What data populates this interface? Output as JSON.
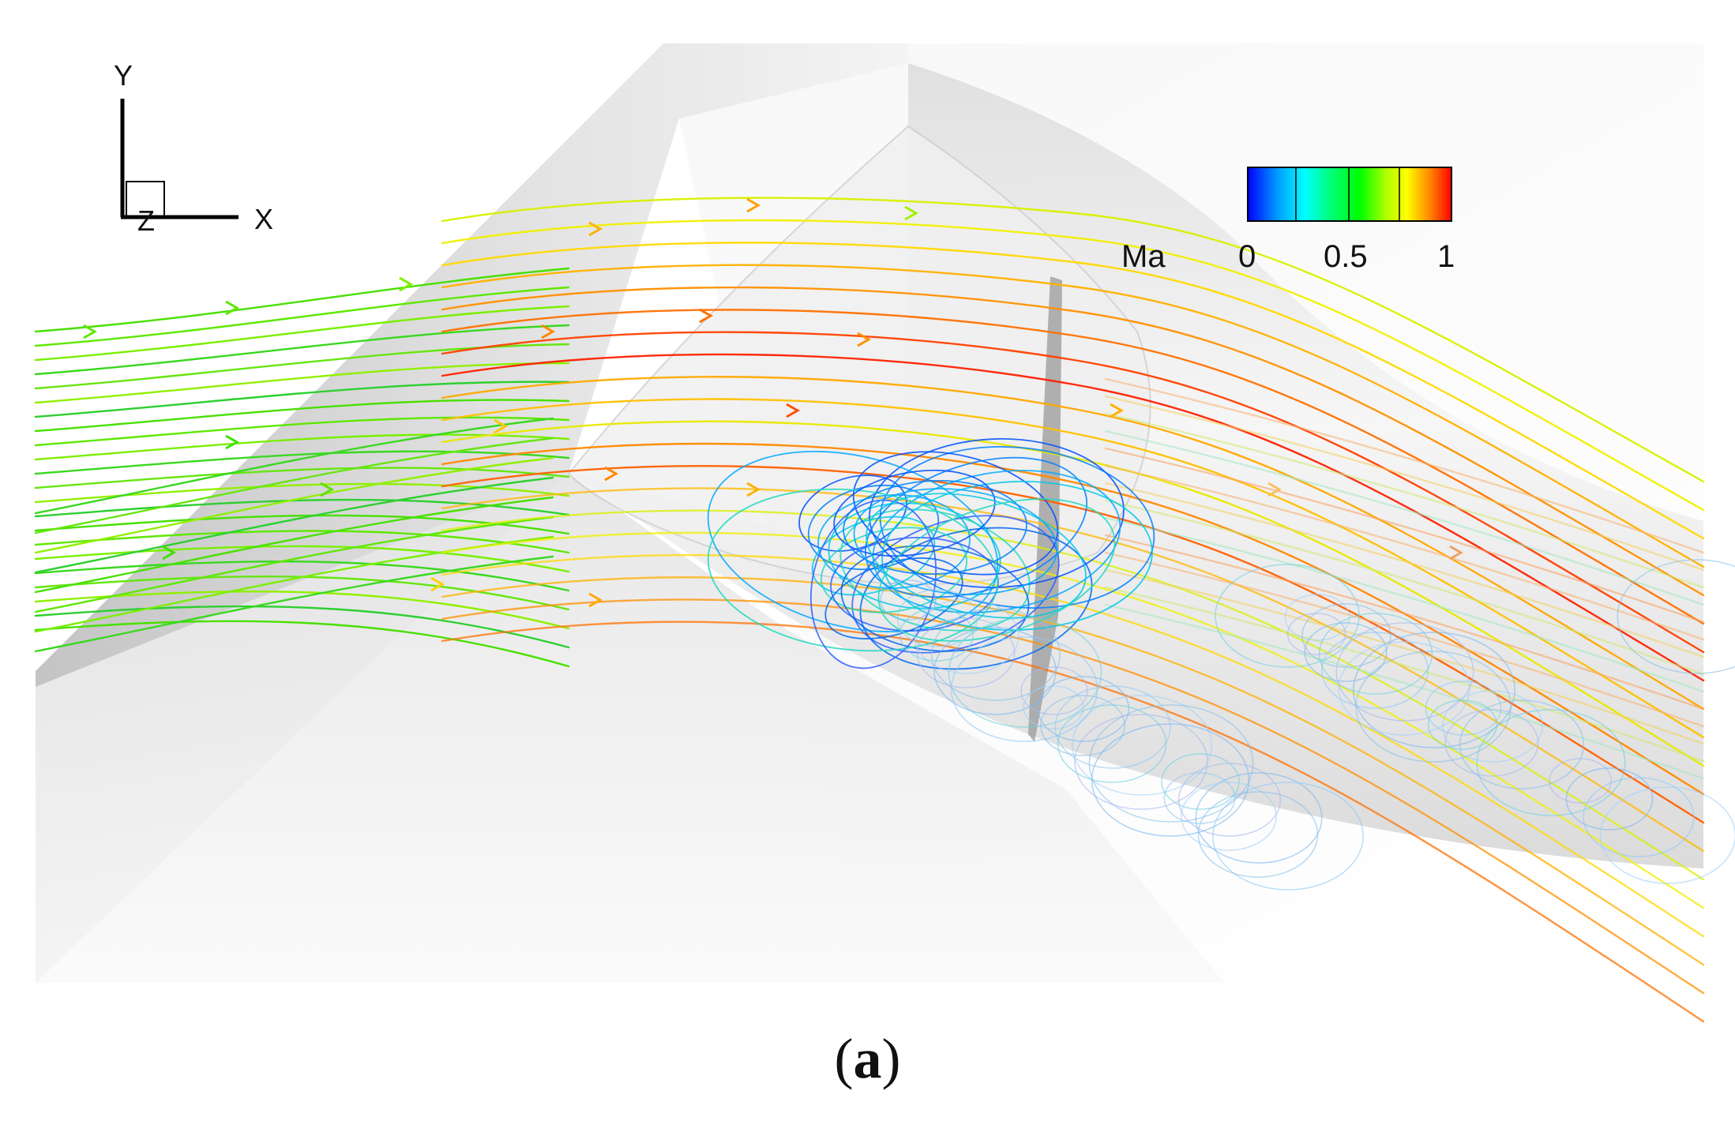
{
  "axes_triad": {
    "y_label": "Y",
    "x_label": "X",
    "z_label": "Z"
  },
  "legend": {
    "variable": "Ma",
    "ticks": [
      "0",
      "0.5",
      "1"
    ],
    "range": [
      0,
      1
    ],
    "colormap": [
      "#0000ff",
      "#00a0ff",
      "#00ffff",
      "#00ff80",
      "#00ff00",
      "#80ff00",
      "#ffff00",
      "#ff8000",
      "#ff0000"
    ]
  },
  "caption": {
    "open": "(",
    "letter": "a",
    "close": ")"
  }
}
